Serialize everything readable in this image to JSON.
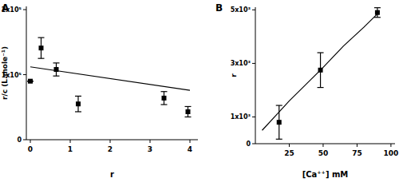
{
  "chart_data": [
    {
      "type": "scatter",
      "title": "A",
      "x_label": "r",
      "y_label": "r/c (L.mole⁻¹)",
      "xlim": [
        -0.1,
        4.2
      ],
      "xticks": [
        0,
        1,
        2,
        3,
        4
      ],
      "ylim": [
        0,
        205000
      ],
      "yticks": [
        0,
        {
          "value": 100000,
          "label": "1x10⁵"
        },
        {
          "value": 200000,
          "label": "2x10⁵"
        }
      ],
      "grid": false,
      "series": [
        {
          "type": "scatter",
          "marker": "square",
          "color": "#000000",
          "x": [
            0,
            0.27,
            0.65,
            1.2,
            3.35,
            3.95
          ],
          "values": [
            90000,
            141000,
            108000,
            55000,
            64000,
            43000
          ],
          "errors": [
            0,
            16000,
            10000,
            12000,
            10000,
            8000
          ]
        },
        {
          "type": "line",
          "line_style": "solid",
          "color": "#000000",
          "x": [
            0,
            4
          ],
          "values": [
            112000,
            76000
          ]
        }
      ]
    },
    {
      "type": "scatter",
      "title": "B",
      "x_label": "[Ca⁺⁺] mM",
      "y_label": "r",
      "xlim": [
        0,
        103
      ],
      "xticks": [
        25,
        50,
        75,
        100
      ],
      "ylim": [
        0,
        5100
      ],
      "yticks": [
        0,
        {
          "value": 1000,
          "label": "1x10³"
        },
        {
          "value": 3000,
          "label": "3x10³"
        },
        {
          "value": 5000,
          "label": "5x10³"
        }
      ],
      "grid": false,
      "series": [
        {
          "type": "scatter",
          "marker": "square",
          "color": "#000000",
          "x": [
            17.5,
            48,
            90
          ],
          "values": [
            800,
            2750,
            4900
          ],
          "errors": [
            630,
            650,
            180
          ]
        },
        {
          "type": "line",
          "line_style": "solid",
          "color": "#000000",
          "x": [
            5,
            15,
            25,
            35,
            50,
            65,
            80,
            90
          ],
          "values": [
            500,
            1050,
            1600,
            2100,
            2850,
            3650,
            4350,
            4850
          ]
        }
      ]
    }
  ]
}
